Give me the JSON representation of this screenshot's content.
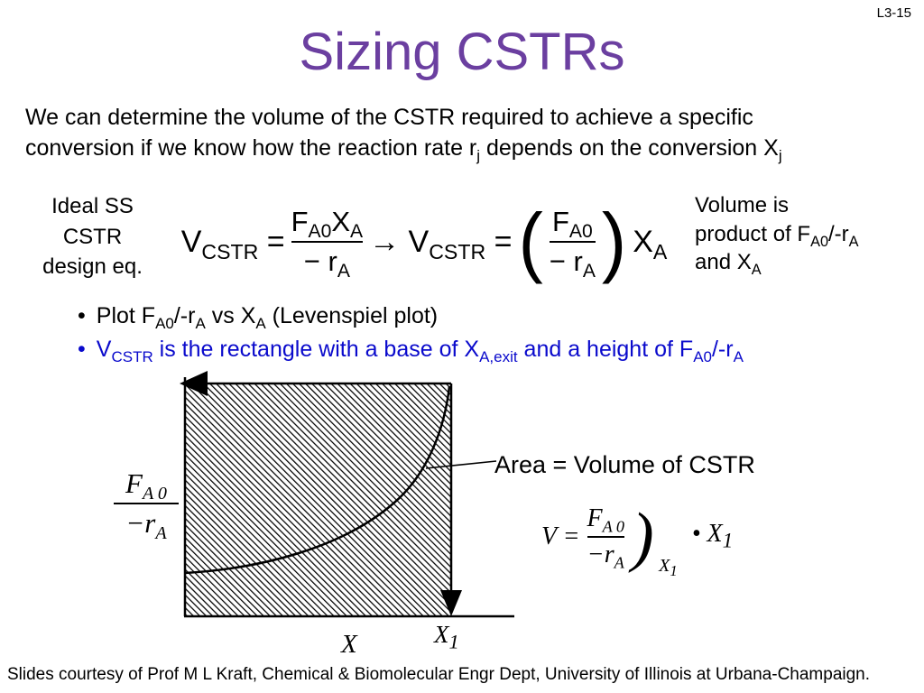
{
  "page_label": "L3-15",
  "title": "Sizing CSTRs",
  "intro": [
    {
      "t": "We can determine the volume of the CSTR required to achieve a specific\nconversion if we know how the reaction rate r"
    },
    {
      "t": "j",
      "s": "sub"
    },
    {
      "t": " depends on the conversion X"
    },
    {
      "t": "j",
      "s": "sub"
    }
  ],
  "design_eq_label": "Ideal SS\nCSTR\ndesign eq.",
  "equation": {
    "lhs": [
      {
        "t": "V"
      },
      {
        "t": "CSTR",
        "s": "sub"
      },
      {
        "t": " = "
      }
    ],
    "frac1": {
      "num": [
        {
          "t": "F"
        },
        {
          "t": "A0",
          "s": "sub"
        },
        {
          "t": "X"
        },
        {
          "t": "A",
          "s": "sub"
        }
      ],
      "den": [
        {
          "t": "− r"
        },
        {
          "t": "A",
          "s": "sub"
        }
      ]
    },
    "mid": [
      {
        "t": "→ V"
      },
      {
        "t": "CSTR",
        "s": "sub"
      },
      {
        "t": " = "
      }
    ],
    "open_paren": "(",
    "frac2": {
      "num": [
        {
          "t": "F"
        },
        {
          "t": "A0",
          "s": "sub"
        }
      ],
      "den": [
        {
          "t": "− r"
        },
        {
          "t": "A",
          "s": "sub"
        }
      ]
    },
    "close_paren": ")",
    "rhs": [
      {
        "t": "X"
      },
      {
        "t": "A",
        "s": "sub"
      }
    ]
  },
  "volume_note": [
    {
      "t": "Volume is\nproduct of F"
    },
    {
      "t": "A0",
      "s": "sub"
    },
    {
      "t": "/-r"
    },
    {
      "t": "A",
      "s": "sub"
    },
    {
      "t": "\nand X"
    },
    {
      "t": "A",
      "s": "sub"
    }
  ],
  "bullets": {
    "marker": "•",
    "items": [
      {
        "segments": [
          {
            "t": "Plot F"
          },
          {
            "t": "A0",
            "s": "sub"
          },
          {
            "t": "/-r"
          },
          {
            "t": "A",
            "s": "sub"
          },
          {
            "t": " vs X"
          },
          {
            "t": "A",
            "s": "sub"
          },
          {
            "t": " (Levenspiel plot)"
          }
        ]
      },
      {
        "segments": [
          {
            "t": "V"
          },
          {
            "t": "CSTR",
            "s": "sub"
          },
          {
            "t": " is the rectangle with a base of X"
          },
          {
            "t": "A,exit",
            "s": "sub"
          },
          {
            "t": " and a height of F"
          },
          {
            "t": "A0",
            "s": "sub"
          },
          {
            "t": "/-r"
          },
          {
            "t": "A",
            "s": "sub"
          }
        ]
      }
    ]
  },
  "plot": {
    "y_label": {
      "num": [
        {
          "t": "F"
        },
        {
          "t": "A 0",
          "s": "sub"
        }
      ],
      "den": [
        {
          "t": "−r"
        },
        {
          "t": "A",
          "s": "sub"
        }
      ]
    },
    "x_label": "X",
    "x_tick": [
      {
        "t": "X"
      },
      {
        "t": "1",
        "s": "sub"
      }
    ],
    "area_label": "Area = Volume of CSTR",
    "inset_equation": {
      "lead": [
        {
          "t": "V = "
        }
      ],
      "frac": {
        "num": [
          {
            "t": "F"
          },
          {
            "t": "A 0",
            "s": "sub"
          }
        ],
        "den": [
          {
            "t": "−r"
          },
          {
            "t": "A",
            "s": "sub"
          }
        ]
      },
      "close_paren": ")",
      "eval_sub": [
        {
          "t": "X"
        },
        {
          "t": "1",
          "s": "sub"
        }
      ],
      "tail": [
        {
          "t": "• X"
        },
        {
          "t": "1",
          "s": "sub"
        }
      ]
    }
  },
  "footer": "Slides courtesy of Prof M L Kraft, Chemical & Biomolecular Engr Dept, University of Illinois at Urbana-Champaign.",
  "colors": {
    "title_purple": "#6B3FA0",
    "bullet_blue": "#0A0ACC",
    "text_black": "#000000"
  }
}
